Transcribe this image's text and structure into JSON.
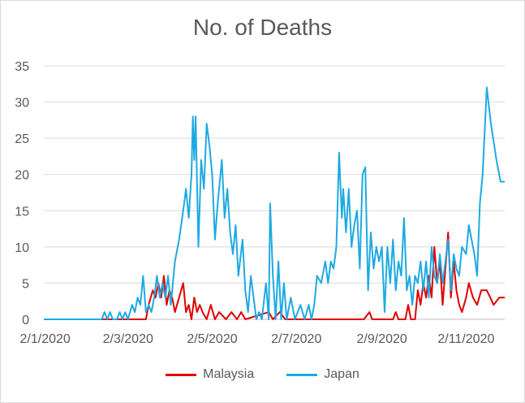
{
  "chart_data": {
    "type": "line",
    "title": "No. of Deaths",
    "xlabel": "",
    "ylabel": "",
    "x_start": "2020-01-01",
    "x_end": "2020-11-30",
    "x_ticks": [
      "2/1/2020",
      "2/3/2020",
      "2/5/2020",
      "2/7/2020",
      "2/9/2020",
      "2/11/2020"
    ],
    "ylim": [
      0,
      35
    ],
    "y_ticks": [
      "0",
      "5",
      "10",
      "15",
      "20",
      "25",
      "30",
      "35"
    ],
    "grid": "horizontal",
    "legend": "bottom",
    "series": [
      {
        "name": "Malaysia",
        "color": "#e00000",
        "points": [
          [
            "2020-01-01",
            0
          ],
          [
            "2020-03-15",
            0
          ],
          [
            "2020-03-17",
            2
          ],
          [
            "2020-03-20",
            4
          ],
          [
            "2020-03-22",
            3
          ],
          [
            "2020-03-24",
            5
          ],
          [
            "2020-03-26",
            3
          ],
          [
            "2020-03-28",
            6
          ],
          [
            "2020-03-30",
            2
          ],
          [
            "2020-04-01",
            4
          ],
          [
            "2020-04-03",
            3
          ],
          [
            "2020-04-05",
            1
          ],
          [
            "2020-04-08",
            3
          ],
          [
            "2020-04-11",
            5
          ],
          [
            "2020-04-13",
            1
          ],
          [
            "2020-04-15",
            2
          ],
          [
            "2020-04-17",
            0
          ],
          [
            "2020-04-19",
            3
          ],
          [
            "2020-04-21",
            1
          ],
          [
            "2020-04-23",
            2
          ],
          [
            "2020-04-25",
            1
          ],
          [
            "2020-04-28",
            0
          ],
          [
            "2020-05-01",
            2
          ],
          [
            "2020-05-04",
            0
          ],
          [
            "2020-05-07",
            1
          ],
          [
            "2020-05-12",
            0
          ],
          [
            "2020-05-16",
            1
          ],
          [
            "2020-05-20",
            0
          ],
          [
            "2020-05-23",
            1
          ],
          [
            "2020-05-26",
            0
          ],
          [
            "2020-06-12",
            1
          ],
          [
            "2020-06-15",
            0
          ],
          [
            "2020-06-20",
            1
          ],
          [
            "2020-06-24",
            0
          ],
          [
            "2020-08-20",
            0
          ],
          [
            "2020-08-24",
            1
          ],
          [
            "2020-08-26",
            0
          ],
          [
            "2020-09-10",
            0
          ],
          [
            "2020-09-12",
            1
          ],
          [
            "2020-09-14",
            0
          ],
          [
            "2020-09-19",
            0
          ],
          [
            "2020-09-21",
            2
          ],
          [
            "2020-09-23",
            0
          ],
          [
            "2020-09-26",
            0
          ],
          [
            "2020-09-28",
            4
          ],
          [
            "2020-09-30",
            2
          ],
          [
            "2020-10-02",
            5
          ],
          [
            "2020-10-04",
            3
          ],
          [
            "2020-10-06",
            6
          ],
          [
            "2020-10-08",
            3
          ],
          [
            "2020-10-10",
            10
          ],
          [
            "2020-10-12",
            5
          ],
          [
            "2020-10-14",
            8
          ],
          [
            "2020-10-16",
            2
          ],
          [
            "2020-10-18",
            7
          ],
          [
            "2020-10-20",
            12
          ],
          [
            "2020-10-22",
            3
          ],
          [
            "2020-10-24",
            8
          ],
          [
            "2020-10-26",
            4
          ],
          [
            "2020-10-28",
            2
          ],
          [
            "2020-10-30",
            1
          ],
          [
            "2020-11-02",
            3
          ],
          [
            "2020-11-04",
            5
          ],
          [
            "2020-11-07",
            3
          ],
          [
            "2020-11-10",
            2
          ],
          [
            "2020-11-13",
            4
          ],
          [
            "2020-11-17",
            4
          ],
          [
            "2020-11-22",
            2
          ],
          [
            "2020-11-26",
            3
          ],
          [
            "2020-11-30",
            3
          ]
        ]
      },
      {
        "name": "Japan",
        "color": "#1eaae1",
        "points": [
          [
            "2020-01-01",
            0
          ],
          [
            "2020-02-12",
            0
          ],
          [
            "2020-02-14",
            1
          ],
          [
            "2020-02-16",
            0
          ],
          [
            "2020-02-18",
            1
          ],
          [
            "2020-02-20",
            0
          ],
          [
            "2020-02-23",
            0
          ],
          [
            "2020-02-25",
            1
          ],
          [
            "2020-02-27",
            0
          ],
          [
            "2020-02-29",
            1
          ],
          [
            "2020-03-02",
            0
          ],
          [
            "2020-03-05",
            2
          ],
          [
            "2020-03-07",
            1
          ],
          [
            "2020-03-09",
            3
          ],
          [
            "2020-03-11",
            2
          ],
          [
            "2020-03-13",
            6
          ],
          [
            "2020-03-15",
            1
          ],
          [
            "2020-03-17",
            2
          ],
          [
            "2020-03-19",
            1
          ],
          [
            "2020-03-21",
            3
          ],
          [
            "2020-03-23",
            6
          ],
          [
            "2020-03-25",
            3
          ],
          [
            "2020-03-27",
            5
          ],
          [
            "2020-03-29",
            3
          ],
          [
            "2020-03-31",
            6
          ],
          [
            "2020-04-02",
            2
          ],
          [
            "2020-04-05",
            8
          ],
          [
            "2020-04-08",
            11
          ],
          [
            "2020-04-11",
            15
          ],
          [
            "2020-04-13",
            18
          ],
          [
            "2020-04-15",
            14
          ],
          [
            "2020-04-17",
            20
          ],
          [
            "2020-04-18",
            28
          ],
          [
            "2020-04-19",
            22
          ],
          [
            "2020-04-20",
            28
          ],
          [
            "2020-04-22",
            10
          ],
          [
            "2020-04-24",
            22
          ],
          [
            "2020-04-26",
            18
          ],
          [
            "2020-04-28",
            27
          ],
          [
            "2020-04-30",
            24
          ],
          [
            "2020-05-02",
            20
          ],
          [
            "2020-05-04",
            11
          ],
          [
            "2020-05-06",
            16
          ],
          [
            "2020-05-09",
            22
          ],
          [
            "2020-05-11",
            14
          ],
          [
            "2020-05-13",
            18
          ],
          [
            "2020-05-15",
            12
          ],
          [
            "2020-05-17",
            9
          ],
          [
            "2020-05-19",
            13
          ],
          [
            "2020-05-21",
            6
          ],
          [
            "2020-05-24",
            11
          ],
          [
            "2020-05-26",
            4
          ],
          [
            "2020-05-28",
            1
          ],
          [
            "2020-05-30",
            6
          ],
          [
            "2020-06-01",
            3
          ],
          [
            "2020-06-03",
            0
          ],
          [
            "2020-06-05",
            1
          ],
          [
            "2020-06-07",
            0
          ],
          [
            "2020-06-10",
            5
          ],
          [
            "2020-06-12",
            0
          ],
          [
            "2020-06-13",
            16
          ],
          [
            "2020-06-15",
            6
          ],
          [
            "2020-06-17",
            0
          ],
          [
            "2020-06-19",
            8
          ],
          [
            "2020-06-21",
            0
          ],
          [
            "2020-06-23",
            5
          ],
          [
            "2020-06-25",
            0
          ],
          [
            "2020-06-28",
            3
          ],
          [
            "2020-07-01",
            0
          ],
          [
            "2020-07-05",
            2
          ],
          [
            "2020-07-08",
            0
          ],
          [
            "2020-07-11",
            2
          ],
          [
            "2020-07-13",
            0
          ],
          [
            "2020-07-15",
            2
          ],
          [
            "2020-07-17",
            6
          ],
          [
            "2020-07-20",
            5
          ],
          [
            "2020-07-23",
            8
          ],
          [
            "2020-07-25",
            5
          ],
          [
            "2020-07-27",
            8
          ],
          [
            "2020-07-29",
            7
          ],
          [
            "2020-07-31",
            10
          ],
          [
            "2020-08-02",
            23
          ],
          [
            "2020-08-04",
            14
          ],
          [
            "2020-08-05",
            18
          ],
          [
            "2020-08-07",
            12
          ],
          [
            "2020-08-09",
            18
          ],
          [
            "2020-08-11",
            10
          ],
          [
            "2020-08-13",
            13
          ],
          [
            "2020-08-15",
            15
          ],
          [
            "2020-08-17",
            7
          ],
          [
            "2020-08-19",
            20
          ],
          [
            "2020-08-21",
            21
          ],
          [
            "2020-08-23",
            4
          ],
          [
            "2020-08-25",
            12
          ],
          [
            "2020-08-27",
            7
          ],
          [
            "2020-08-29",
            10
          ],
          [
            "2020-08-31",
            8
          ],
          [
            "2020-09-02",
            10
          ],
          [
            "2020-09-04",
            1
          ],
          [
            "2020-09-06",
            10
          ],
          [
            "2020-09-08",
            5
          ],
          [
            "2020-09-10",
            11
          ],
          [
            "2020-09-12",
            4
          ],
          [
            "2020-09-14",
            8
          ],
          [
            "2020-09-16",
            6
          ],
          [
            "2020-09-18",
            14
          ],
          [
            "2020-09-20",
            4
          ],
          [
            "2020-09-22",
            6
          ],
          [
            "2020-09-24",
            2
          ],
          [
            "2020-09-26",
            6
          ],
          [
            "2020-09-28",
            5
          ],
          [
            "2020-09-30",
            8
          ],
          [
            "2020-10-02",
            4
          ],
          [
            "2020-10-04",
            8
          ],
          [
            "2020-10-06",
            3
          ],
          [
            "2020-10-08",
            10
          ],
          [
            "2020-10-10",
            6
          ],
          [
            "2020-10-12",
            5
          ],
          [
            "2020-10-14",
            9
          ],
          [
            "2020-10-16",
            5
          ],
          [
            "2020-10-18",
            8
          ],
          [
            "2020-10-20",
            11
          ],
          [
            "2020-10-22",
            4
          ],
          [
            "2020-10-24",
            9
          ],
          [
            "2020-10-26",
            7
          ],
          [
            "2020-10-28",
            6
          ],
          [
            "2020-10-30",
            10
          ],
          [
            "2020-11-02",
            9
          ],
          [
            "2020-11-04",
            13
          ],
          [
            "2020-11-06",
            11
          ],
          [
            "2020-11-08",
            9
          ],
          [
            "2020-11-10",
            6
          ],
          [
            "2020-11-12",
            16
          ],
          [
            "2020-11-14",
            20
          ],
          [
            "2020-11-17",
            32
          ],
          [
            "2020-11-20",
            27
          ],
          [
            "2020-11-24",
            22
          ],
          [
            "2020-11-27",
            19
          ],
          [
            "2020-11-30",
            19
          ]
        ]
      }
    ]
  }
}
